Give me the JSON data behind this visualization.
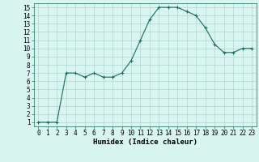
{
  "x": [
    0,
    1,
    2,
    3,
    4,
    5,
    6,
    7,
    8,
    9,
    10,
    11,
    12,
    13,
    14,
    15,
    16,
    17,
    18,
    19,
    20,
    21,
    22,
    23
  ],
  "y": [
    1,
    1,
    1,
    7,
    7,
    6.5,
    7,
    6.5,
    6.5,
    7,
    8.5,
    11,
    13.5,
    15,
    15,
    15,
    14.5,
    14,
    12.5,
    10.5,
    9.5,
    9.5,
    10,
    10
  ],
  "line_color": "#1a6b60",
  "marker": "+",
  "bg_color": "#d8f5f0",
  "grid_color": "#b0d8d0",
  "xlabel": "Humidex (Indice chaleur)",
  "xlim": [
    -0.5,
    23.5
  ],
  "ylim": [
    0.5,
    15.5
  ],
  "yticks": [
    1,
    2,
    3,
    4,
    5,
    6,
    7,
    8,
    9,
    10,
    11,
    12,
    13,
    14,
    15
  ],
  "xticks": [
    0,
    1,
    2,
    3,
    4,
    5,
    6,
    7,
    8,
    9,
    10,
    11,
    12,
    13,
    14,
    15,
    16,
    17,
    18,
    19,
    20,
    21,
    22,
    23
  ],
  "label_fontsize": 6.5,
  "tick_fontsize": 5.5
}
